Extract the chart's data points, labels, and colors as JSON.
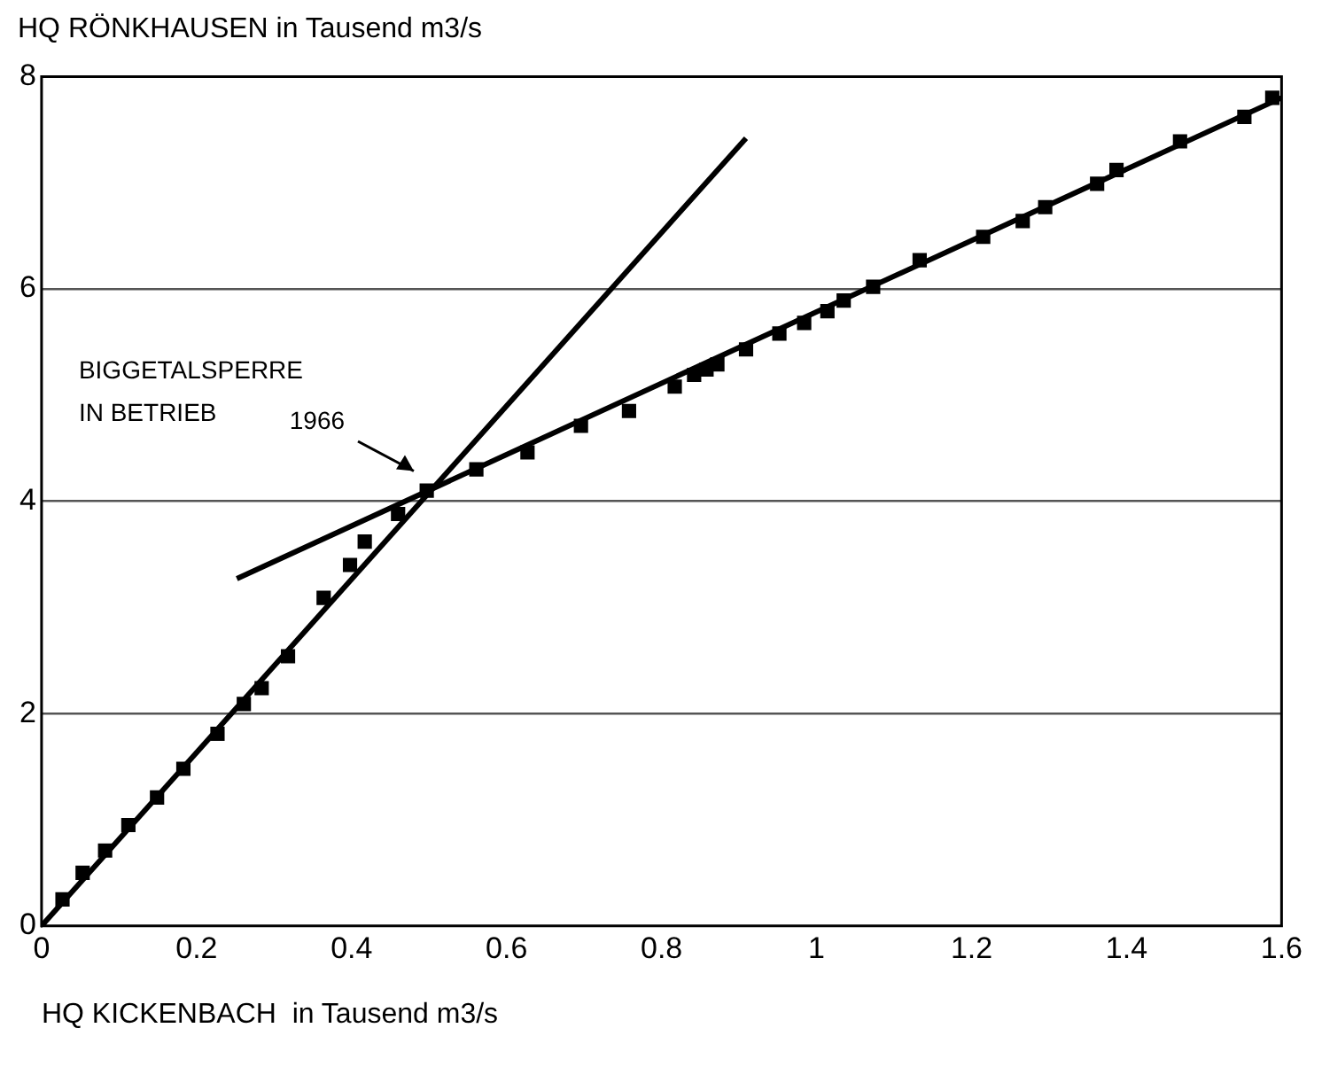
{
  "chart_data": {
    "type": "scatter",
    "xlabel": "HQ KICKENBACH  in Tausend m3/s",
    "ylabel": "HQ RÖNKHAUSEN  in Tausend m3/s",
    "xlim": [
      0,
      1.6
    ],
    "xticks": [
      0,
      0.2,
      0.4,
      0.6,
      0.8,
      1,
      1.2,
      1.4,
      1.6
    ],
    "ylim": [
      0,
      8
    ],
    "yticks": [
      0,
      2,
      4,
      6,
      8
    ],
    "grid": "y",
    "annotations": [
      "BIGGETALSPERRE IN BETRIEB",
      "1966"
    ],
    "series": [
      {
        "type": "scatter",
        "marker": "square",
        "color": "#000000",
        "x": [
          0.027,
          0.053,
          0.082,
          0.112,
          0.149,
          0.183,
          0.227,
          0.261,
          0.284,
          0.318,
          0.364,
          0.398,
          0.417,
          0.46,
          0.497,
          0.561,
          0.627,
          0.696,
          0.758,
          0.817,
          0.842,
          0.858,
          0.872,
          0.909,
          0.952,
          0.984,
          1.014,
          1.035,
          1.073,
          1.133,
          1.215,
          1.266,
          1.295,
          1.362,
          1.387,
          1.469,
          1.552,
          1.588
        ],
        "values": [
          0.25,
          0.5,
          0.71,
          0.95,
          1.21,
          1.48,
          1.81,
          2.09,
          2.24,
          2.54,
          3.09,
          3.4,
          3.62,
          3.88,
          4.1,
          4.3,
          4.46,
          4.71,
          4.85,
          5.08,
          5.19,
          5.24,
          5.29,
          5.43,
          5.58,
          5.68,
          5.79,
          5.89,
          6.02,
          6.27,
          6.49,
          6.64,
          6.77,
          6.99,
          7.12,
          7.39,
          7.62,
          7.8
        ]
      },
      {
        "type": "line",
        "marker": "none",
        "line_style": "solid",
        "color": "#000000",
        "x": [
          0,
          0.909
        ],
        "values": [
          0,
          7.42
        ]
      },
      {
        "type": "line",
        "marker": "none",
        "line_style": "solid",
        "color": "#000000",
        "x": [
          0.252,
          1.6
        ],
        "values": [
          3.27,
          7.8
        ]
      }
    ]
  }
}
